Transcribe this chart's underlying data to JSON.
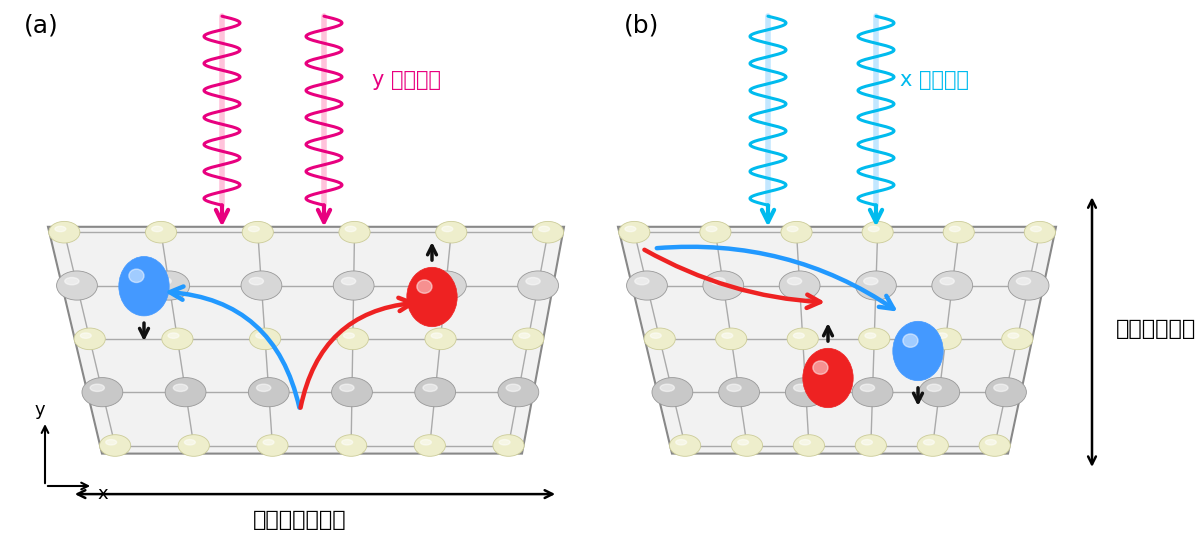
{
  "fig_width": 12.0,
  "fig_height": 5.4,
  "bg_color": "#ffffff",
  "panel_a_label": "(a)",
  "panel_b_label": "(b)",
  "label_a_text": "y 偏光照射",
  "label_b_text": "x 偏光照射",
  "label_a_color": "#e8007f",
  "label_b_color": "#00bbee",
  "spin_hall_text": "スピンホール流",
  "electron_hole_text": "電子ホール流",
  "atom_large_color_top": "#d0d0d0",
  "atom_large_color_bot": "#e8e8e8",
  "atom_small_color": "#eeeecc",
  "blue_ball_color": "#4499ff",
  "red_ball_color": "#ee2222",
  "arrow_blue_color": "#2299ff",
  "arrow_red_color": "#ee2222",
  "helix_a_color": "#e8007f",
  "helix_b_color": "#00bbee",
  "helix_line_a": "#ffaacc",
  "helix_line_b": "#aaddff",
  "slab_face_color": "#f2f2f2",
  "slab_edge_color": "#888888"
}
